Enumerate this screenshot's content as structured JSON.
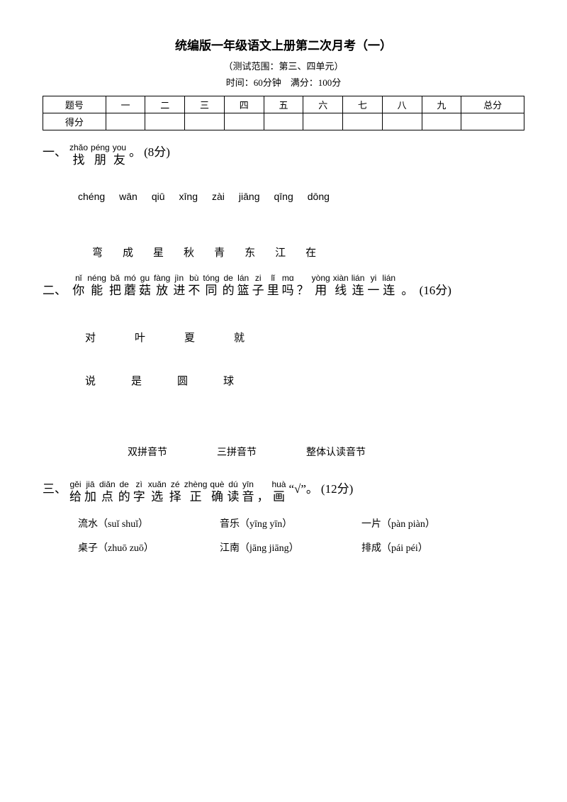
{
  "title": "统编版一年级语文上册第二次月考（一）",
  "subtitle": "（测试范围：第三、四单元）",
  "timing": "时间：60分钟　满分：100分",
  "score_table": {
    "headers": [
      "题号",
      "一",
      "二",
      "三",
      "四",
      "五",
      "六",
      "七",
      "八",
      "九",
      "总分"
    ],
    "row2_label": "得分"
  },
  "q1": {
    "num": "一、",
    "pinyin": [
      "zhǎo",
      "péng",
      "you"
    ],
    "hanzi": [
      "找",
      "朋",
      "友"
    ],
    "tail": "。",
    "points": "(8分)",
    "row_pinyin": [
      "chéng",
      "wān",
      "qiū",
      "xīng",
      "zài",
      "jiāng",
      "qīng",
      "dōng"
    ],
    "row_hanzi": [
      "弯",
      "成",
      "星",
      "秋",
      "青",
      "东",
      "江",
      "在"
    ]
  },
  "q2": {
    "num": "二、",
    "pinyin": [
      "nǐ",
      "néng",
      "bǎ",
      "mó",
      "gu",
      "fàng",
      "jìn",
      "bù",
      "tóng",
      "de",
      "lán",
      "zi",
      "lǐ",
      "mɑ",
      "",
      "yòng",
      "xiàn",
      "lián",
      "yi",
      "lián"
    ],
    "hanzi": [
      "你",
      "能",
      "把",
      "蘑",
      "菇",
      "放",
      "进",
      "不",
      "同",
      "的",
      "篮",
      "子",
      "里",
      "吗",
      "？",
      "用",
      "线",
      "连",
      "一",
      "连"
    ],
    "tail": "。",
    "points": "(16分)",
    "row1": [
      "对",
      "叶",
      "夏",
      "就"
    ],
    "row2": [
      "说",
      "是",
      "圆",
      "球"
    ],
    "cats": [
      "双拼音节",
      "三拼音节",
      "整体认读音节"
    ]
  },
  "q3": {
    "num": "三、",
    "pinyin": [
      "gěi",
      "jiā",
      "diǎn",
      "de",
      "zì",
      "xuǎn",
      "zé",
      "zhèng",
      "què",
      "dú",
      "yīn",
      "",
      "huà"
    ],
    "hanzi": [
      "给",
      "加",
      "点",
      "的",
      "字",
      "选",
      "择",
      "正",
      "确",
      "读",
      "音",
      "，",
      "画"
    ],
    "mid": "“√”",
    "tail": "。",
    "points": "(12分)",
    "items_row1": [
      {
        "w": "流水",
        "o": "（suǐ  shuǐ）"
      },
      {
        "w": "音乐",
        "o": "（yīng  yīn）"
      },
      {
        "w": "一片",
        "o": "（pàn  piàn）"
      }
    ],
    "items_row2": [
      {
        "w": "桌子",
        "o": "（zhuō  zuō）"
      },
      {
        "w": "江南",
        "o": "（jāng  jiāng）"
      },
      {
        "w": "排成",
        "o": "（pái  péi）"
      }
    ]
  }
}
